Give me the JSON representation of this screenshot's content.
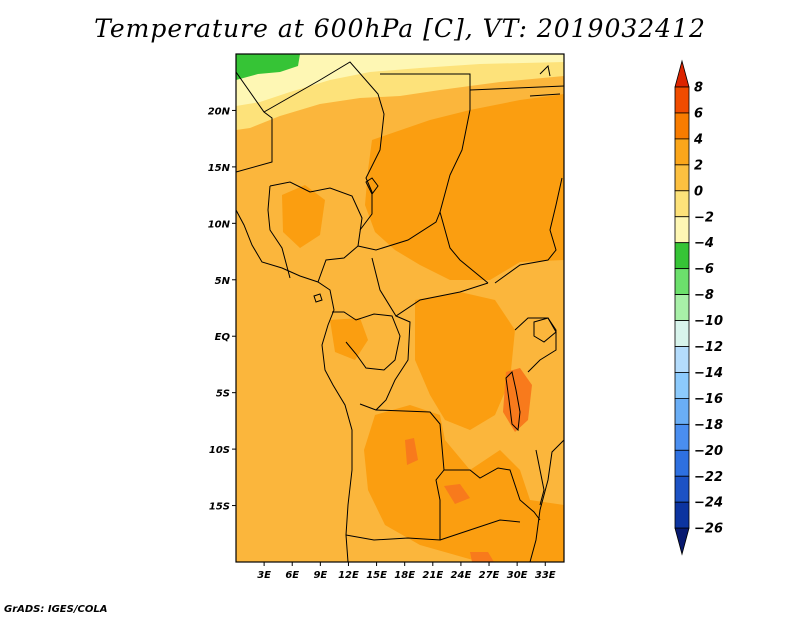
{
  "title": "Temperature at 600hPa [C], VT: 2019032412",
  "credit": "GrADS: IGES/COLA",
  "map": {
    "lon_range": [
      0,
      35
    ],
    "lat_range": [
      -20,
      25
    ],
    "lat_ticks": [
      {
        "value": 20,
        "label": "20N"
      },
      {
        "value": 15,
        "label": "15N"
      },
      {
        "value": 10,
        "label": "10N"
      },
      {
        "value": 5,
        "label": "5N"
      },
      {
        "value": 0,
        "label": "EQ"
      },
      {
        "value": -5,
        "label": "5S"
      },
      {
        "value": -10,
        "label": "10S"
      },
      {
        "value": -15,
        "label": "15S"
      }
    ],
    "lon_ticks": [
      {
        "value": 3,
        "label": "3E"
      },
      {
        "value": 6,
        "label": "6E"
      },
      {
        "value": 9,
        "label": "9E"
      },
      {
        "value": 12,
        "label": "12E"
      },
      {
        "value": 15,
        "label": "15E"
      },
      {
        "value": 18,
        "label": "18E"
      },
      {
        "value": 21,
        "label": "21E"
      },
      {
        "value": 24,
        "label": "24E"
      },
      {
        "value": 27,
        "label": "27E"
      },
      {
        "value": 30,
        "label": "30E"
      },
      {
        "value": 33,
        "label": "33E"
      }
    ]
  },
  "colorbar": {
    "levels": [
      8,
      6,
      4,
      2,
      0,
      -2,
      -4,
      -6,
      -8,
      -10,
      -12,
      -14,
      -16,
      -18,
      -20,
      -22,
      -24,
      -26
    ],
    "labels": [
      "8",
      "6",
      "4",
      "2",
      "0",
      "−2",
      "−4",
      "−6",
      "−8",
      "−10",
      "−12",
      "−14",
      "−16",
      "−18",
      "−20",
      "−22",
      "−24",
      "−26"
    ],
    "colors": [
      "#dc2400",
      "#f04c00",
      "#f87c00",
      "#fba61a",
      "#fcc040",
      "#fde27a",
      "#fef7b4",
      "#36c436",
      "#6ce06c",
      "#a8f0a8",
      "#d8f4ec",
      "#b4dcfc",
      "#8ccafc",
      "#6aaef6",
      "#4a8ef0",
      "#2e70e0",
      "#1c52c4",
      "#0c34a0",
      "#081a70",
      "#dcdcfc"
    ]
  }
}
